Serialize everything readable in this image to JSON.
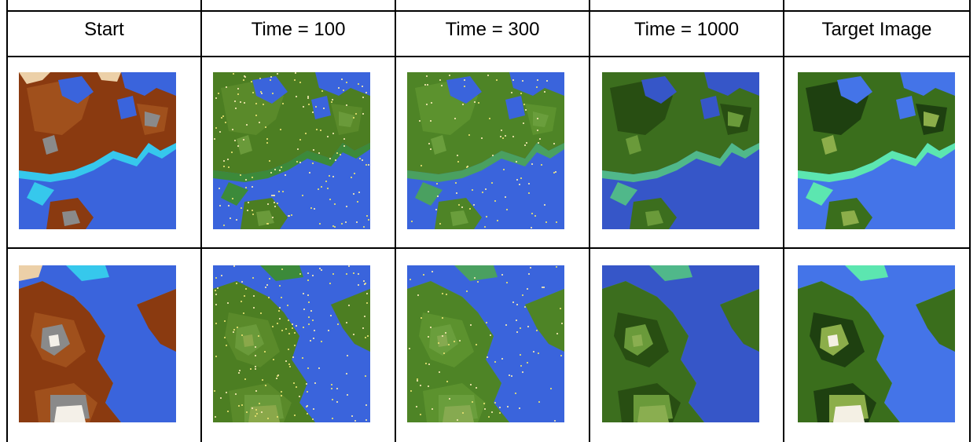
{
  "table": {
    "headers": [
      "Start",
      "Time = 100",
      "Time = 300",
      "Time = 1000",
      "Target Image"
    ]
  },
  "rows": [
    {
      "cells": [
        {
          "style": "start"
        },
        {
          "style": "t100"
        },
        {
          "style": "t300"
        },
        {
          "style": "t1000"
        },
        {
          "style": "target"
        }
      ]
    },
    {
      "cells": [
        {
          "style": "start"
        },
        {
          "style": "t100"
        },
        {
          "style": "t300"
        },
        {
          "style": "t1000"
        },
        {
          "style": "target"
        }
      ]
    }
  ],
  "palettes": {
    "start": {
      "water": "#3a64dc",
      "shore": "#36c8ec",
      "land": "#8a3a10",
      "land2": "#a0501c",
      "high": "#8a8a8a",
      "peak": "#f4f0e8",
      "sand": "#ecd0a8"
    },
    "t100": {
      "water": "#3a64dc",
      "shore": "#3c8a3a",
      "land": "#4c7e22",
      "land2": "#5a8a2a",
      "high": "#6a9a3a",
      "peak": "#8aa84a",
      "sand": "#4c7e22"
    },
    "t300": {
      "water": "#3a64dc",
      "shore": "#4aa060",
      "land": "#4e8426",
      "land2": "#5c922e",
      "high": "#6a9e3c",
      "peak": "#86aa50",
      "sand": "#4e8426"
    },
    "t1000": {
      "water": "#3656c8",
      "shore": "#50b88a",
      "land": "#3c6e1e",
      "land2": "#284e12",
      "high": "#6a9a3a",
      "peak": "#8aae50",
      "sand": "#3c6e1e"
    },
    "target": {
      "water": "#4474e8",
      "shore": "#5ce6b0",
      "land": "#3a6e1c",
      "land2": "#1e4010",
      "high": "#8cae4a",
      "peak": "#f4f0e4",
      "sand": "#3a6e1c"
    }
  }
}
